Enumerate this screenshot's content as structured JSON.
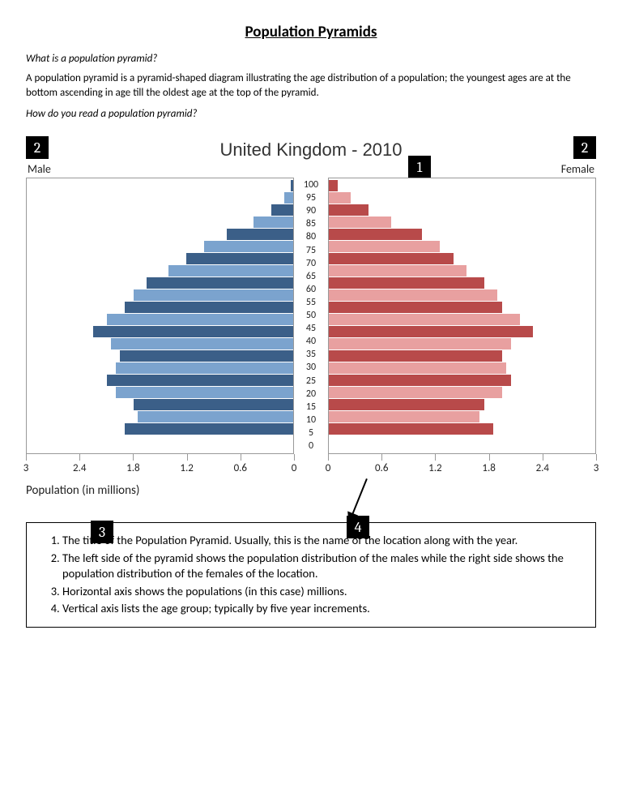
{
  "doc": {
    "title": "Population Pyramids",
    "q1": "What is a population pyramid?",
    "a1": "A population pyramid is a pyramid-shaped diagram illustrating the age distribution of a population; the youngest ages are at the bottom ascending in age till the oldest age at the top of the pyramid.",
    "q2": "How do you read a population pyramid?"
  },
  "chart": {
    "title": "United Kingdom - 2010",
    "male_label": "Male",
    "female_label": "Female",
    "x_label": "Population (in millions)",
    "x_max": 3.0,
    "x_ticks": [
      "3",
      "2.4",
      "1.8",
      "1.2",
      "0.6",
      "0"
    ],
    "x_ticks_right": [
      "0",
      "0.6",
      "1.2",
      "1.8",
      "2.4",
      "3"
    ],
    "age_labels": [
      "100",
      "95",
      "90",
      "85",
      "80",
      "75",
      "70",
      "65",
      "60",
      "55",
      "50",
      "45",
      "40",
      "35",
      "30",
      "25",
      "20",
      "15",
      "10",
      "5",
      "0"
    ],
    "male_colors_alt": [
      "#3b5f88",
      "#7ba3ce"
    ],
    "female_colors_alt": [
      "#b84a4a",
      "#e8a0a0"
    ],
    "border_color": "#999999",
    "background": "#ffffff",
    "male_values": [
      0.03,
      0.1,
      0.25,
      0.45,
      0.75,
      1.0,
      1.2,
      1.4,
      1.65,
      1.8,
      1.9,
      2.1,
      2.25,
      2.05,
      1.95,
      2.0,
      2.1,
      2.0,
      1.8,
      1.75,
      1.9
    ],
    "female_values": [
      0.1,
      0.25,
      0.45,
      0.7,
      1.05,
      1.25,
      1.4,
      1.55,
      1.75,
      1.9,
      1.95,
      2.15,
      2.3,
      2.05,
      1.95,
      2.0,
      2.05,
      1.95,
      1.75,
      1.7,
      1.85
    ]
  },
  "callouts": {
    "c1": "1",
    "c2": "2",
    "c3": "3",
    "c4": "4"
  },
  "legend": {
    "i1": "The title of the Population Pyramid. Usually, this is the name of the location along with the year.",
    "i2": "The left side of the pyramid shows the population distribution of the males while the right side shows the population distribution of the females of the location.",
    "i3": "Horizontal axis shows the populations (in this case) millions.",
    "i4": "Vertical axis lists the age group; typically by five year increments."
  }
}
